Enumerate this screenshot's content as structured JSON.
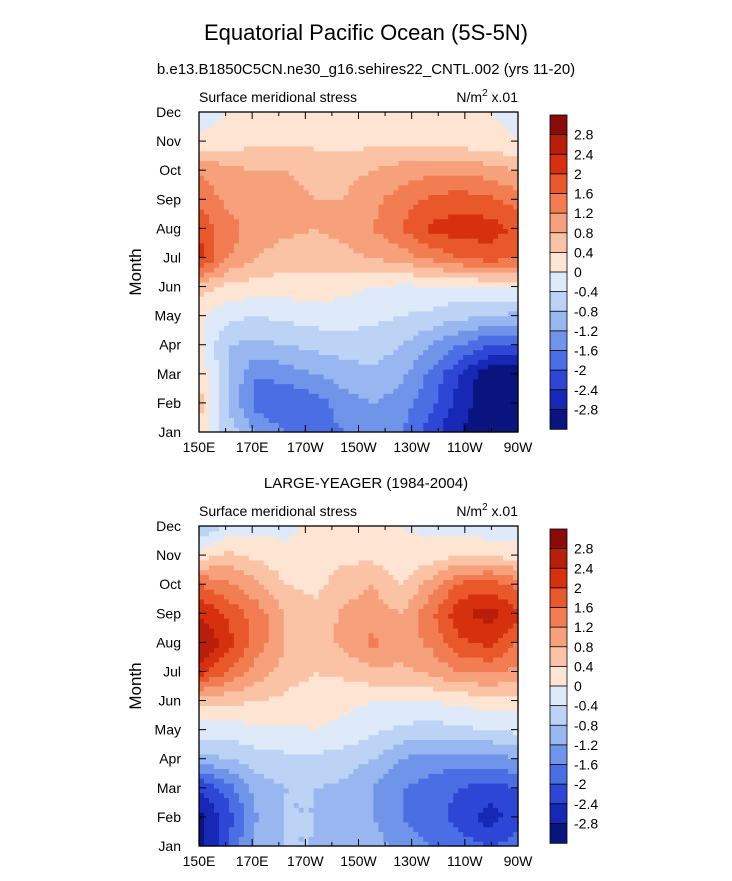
{
  "title": "Equatorial Pacific Ocean (5S-5N)",
  "subtitle": "b.e13.B1850C5CN.ne30_g16.sehires22_CNTL.002 (yrs 11-20)",
  "chart_data": [
    {
      "type": "heatmap",
      "panel_title": "",
      "left_label": "Surface meridional stress",
      "right_label": {
        "base": "N/m",
        "sup": "2",
        "rest": " x.01"
      },
      "ylabel": "Month",
      "x_ticks": [
        "150E",
        "170E",
        "170W",
        "150W",
        "130W",
        "110W",
        "90W"
      ],
      "x_lon": [
        150,
        170,
        190,
        210,
        230,
        250,
        270
      ],
      "y_ticks": [
        "Jan",
        "Feb",
        "Mar",
        "Apr",
        "May",
        "Jun",
        "Jul",
        "Aug",
        "Sep",
        "Oct",
        "Nov",
        "Dec"
      ],
      "colorbar_levels": [
        "2.8",
        "2.4",
        "2",
        "1.6",
        "1.2",
        "0.8",
        "0.4",
        "0",
        "-0.4",
        "-0.8",
        "-1.2",
        "-1.6",
        "-2",
        "-2.4",
        "-2.8"
      ],
      "colorbar_colors": [
        "#8b0a0a",
        "#b81e0a",
        "#d7300f",
        "#e8582b",
        "#f27d52",
        "#f7a07c",
        "#fbc3a6",
        "#fde4d3",
        "#deeaf9",
        "#bcd3f5",
        "#98b6f0",
        "#6f94ea",
        "#4b6ee4",
        "#2e46d6",
        "#1628b5",
        "#0a147f"
      ],
      "z_grid": [
        [
          0.3,
          -0.6,
          -1.2,
          -1.6,
          -1.8,
          -1.6,
          -1.4,
          -1.6,
          -2.2,
          -2.8,
          -3.0,
          -3.0
        ],
        [
          0.6,
          -0.8,
          -1.8,
          -2.0,
          -1.8,
          -1.4,
          -1.2,
          -1.4,
          -1.9,
          -2.6,
          -3.1,
          -3.3
        ],
        [
          0.3,
          -0.8,
          -1.6,
          -1.4,
          -1.2,
          -1.0,
          -0.9,
          -1.1,
          -1.7,
          -2.4,
          -3.1,
          -3.2
        ],
        [
          0.1,
          -0.8,
          -0.9,
          -0.8,
          -0.7,
          -0.6,
          -0.6,
          -0.8,
          -1.2,
          -1.6,
          -2.0,
          -2.1
        ],
        [
          0.1,
          -0.3,
          -0.4,
          -0.3,
          -0.2,
          -0.2,
          -0.3,
          -0.4,
          -0.5,
          -0.7,
          -0.8,
          -0.9
        ],
        [
          0.6,
          0.3,
          0.2,
          0.2,
          0.2,
          0.1,
          0.0,
          -0.1,
          -0.1,
          -0.1,
          0.0,
          0.0
        ],
        [
          2.2,
          1.2,
          0.8,
          0.6,
          0.6,
          0.7,
          0.8,
          1.0,
          1.3,
          1.6,
          1.8,
          1.6
        ],
        [
          1.9,
          1.4,
          1.0,
          0.9,
          0.8,
          0.9,
          1.2,
          1.6,
          2.1,
          2.2,
          2.2,
          1.9
        ],
        [
          1.5,
          1.1,
          0.9,
          0.9,
          0.8,
          0.8,
          1.1,
          1.4,
          1.7,
          1.8,
          1.7,
          1.4
        ],
        [
          1.2,
          0.9,
          0.8,
          0.8,
          0.7,
          0.7,
          0.8,
          1.0,
          1.1,
          1.1,
          1.0,
          0.8
        ],
        [
          0.1,
          0.2,
          0.3,
          0.3,
          0.3,
          0.2,
          0.3,
          0.3,
          0.3,
          0.2,
          0.1,
          0.0
        ],
        [
          -0.2,
          0.0,
          0.1,
          0.2,
          0.3,
          0.2,
          0.1,
          0.1,
          0.0,
          0.0,
          0.0,
          -0.1
        ]
      ]
    },
    {
      "type": "heatmap",
      "panel_title": "LARGE-YEAGER (1984-2004)",
      "left_label": "Surface meridional stress",
      "right_label": {
        "base": "N/m",
        "sup": "2",
        "rest": " x.01"
      },
      "ylabel": "Month",
      "x_ticks": [
        "150E",
        "170E",
        "170W",
        "150W",
        "130W",
        "110W",
        "90W"
      ],
      "x_lon": [
        150,
        170,
        190,
        210,
        230,
        250,
        270
      ],
      "y_ticks": [
        "Jan",
        "Feb",
        "Mar",
        "Apr",
        "May",
        "Jun",
        "Jul",
        "Aug",
        "Sep",
        "Oct",
        "Nov",
        "Dec"
      ],
      "colorbar_levels": [
        "2.8",
        "2.4",
        "2",
        "1.6",
        "1.2",
        "0.8",
        "0.4",
        "0",
        "-0.4",
        "-0.8",
        "-1.2",
        "-1.6",
        "-2",
        "-2.4",
        "-2.8"
      ],
      "colorbar_colors": [
        "#8b0a0a",
        "#b81e0a",
        "#d7300f",
        "#e8582b",
        "#f27d52",
        "#f7a07c",
        "#fbc3a6",
        "#fde4d3",
        "#deeaf9",
        "#bcd3f5",
        "#98b6f0",
        "#6f94ea",
        "#4b6ee4",
        "#2e46d6",
        "#1628b5",
        "#0a147f"
      ],
      "z_grid": [
        [
          -3.0,
          -2.0,
          -1.0,
          -0.8,
          -0.8,
          -0.8,
          -1.0,
          -1.4,
          -1.6,
          -1.8,
          -2.0,
          -1.8
        ],
        [
          -3.0,
          -2.2,
          -1.2,
          -0.8,
          -0.8,
          -0.9,
          -1.2,
          -1.6,
          -1.8,
          -2.2,
          -2.6,
          -2.2
        ],
        [
          -2.4,
          -1.8,
          -1.0,
          -0.8,
          -0.8,
          -0.9,
          -1.2,
          -1.6,
          -1.8,
          -2.0,
          -2.2,
          -2.0
        ],
        [
          -1.0,
          -0.8,
          -0.6,
          -0.5,
          -0.5,
          -0.6,
          -0.8,
          -1.2,
          -1.4,
          -1.4,
          -1.4,
          -1.2
        ],
        [
          -0.2,
          -0.2,
          -0.1,
          -0.1,
          0.0,
          -0.1,
          -0.3,
          -0.5,
          -0.6,
          -0.5,
          -0.4,
          -0.3
        ],
        [
          0.6,
          0.5,
          0.4,
          0.3,
          0.2,
          0.1,
          0.0,
          0.0,
          0.0,
          0.1,
          0.2,
          0.2
        ],
        [
          2.2,
          1.6,
          1.0,
          0.6,
          0.4,
          0.5,
          0.7,
          0.7,
          0.9,
          1.2,
          1.3,
          1.1
        ],
        [
          2.9,
          2.2,
          1.4,
          0.8,
          0.6,
          0.9,
          1.3,
          1.0,
          1.3,
          1.9,
          2.1,
          1.6
        ],
        [
          2.4,
          1.9,
          1.4,
          0.8,
          0.5,
          0.9,
          1.0,
          0.8,
          1.5,
          2.3,
          2.6,
          2.1
        ],
        [
          1.6,
          1.3,
          0.9,
          0.4,
          0.3,
          0.6,
          0.8,
          0.4,
          1.0,
          1.7,
          1.8,
          1.5
        ],
        [
          0.2,
          0.5,
          0.3,
          0.1,
          0.1,
          0.3,
          0.3,
          0.1,
          0.2,
          0.4,
          0.4,
          0.2
        ],
        [
          -0.8,
          -0.3,
          -0.1,
          -0.1,
          0.1,
          0.3,
          0.1,
          0.0,
          -0.1,
          -0.2,
          -0.3,
          -0.2
        ]
      ]
    }
  ]
}
